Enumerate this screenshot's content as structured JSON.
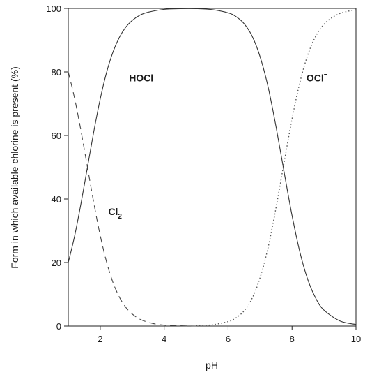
{
  "chart_data": {
    "type": "line",
    "xlabel": "pH",
    "ylabel": "Form in which available chlorine is present (%)",
    "xlim": [
      1,
      10
    ],
    "ylim": [
      0,
      100
    ],
    "xticks": [
      2,
      4,
      6,
      8,
      10
    ],
    "yticks": [
      0,
      20,
      40,
      60,
      80,
      100
    ],
    "grid": false,
    "legend": "none",
    "series": [
      {
        "name": "HOCl",
        "label": {
          "main": "HOCl",
          "sub": "",
          "sup": "",
          "x": 2.9,
          "y": 77
        },
        "style": "solid",
        "color": "#333333",
        "x": [
          1.0,
          1.2,
          1.4,
          1.6,
          1.8,
          2.0,
          2.2,
          2.4,
          2.6,
          2.8,
          3.0,
          3.25,
          3.5,
          4.0,
          4.5,
          5.0,
          5.5,
          6.0,
          6.25,
          6.5,
          6.75,
          7.0,
          7.25,
          7.5,
          7.75,
          8.0,
          8.25,
          8.5,
          8.75,
          9.0,
          9.5,
          10.0
        ],
        "values": [
          20.0,
          28.4,
          38.7,
          50.0,
          61.3,
          71.5,
          79.9,
          86.3,
          90.9,
          94.1,
          96.2,
          97.9,
          98.8,
          99.7,
          99.9,
          99.9,
          99.6,
          98.6,
          97.4,
          95.2,
          91.3,
          84.8,
          75.3,
          62.7,
          48.6,
          34.8,
          23.1,
          14.4,
          8.6,
          5.0,
          1.6,
          0.5
        ]
      },
      {
        "name": "Cl2",
        "label": {
          "main": "Cl",
          "sub": "2",
          "sup": "",
          "x": 2.25,
          "y": 35
        },
        "style": "dashed",
        "color": "#444444",
        "x": [
          1.0,
          1.2,
          1.4,
          1.6,
          1.8,
          2.0,
          2.2,
          2.4,
          2.6,
          2.8,
          3.0,
          3.25,
          3.5,
          3.75,
          4.0,
          4.5,
          5.0
        ],
        "values": [
          80.0,
          71.6,
          61.3,
          50.0,
          38.7,
          28.5,
          20.1,
          13.7,
          9.1,
          5.9,
          3.8,
          2.1,
          1.2,
          0.6,
          0.3,
          0.1,
          0.0
        ]
      },
      {
        "name": "OCl-",
        "label": {
          "main": "OCl",
          "sub": "",
          "sup": "−",
          "x": 8.45,
          "y": 77
        },
        "style": "dotted",
        "color": "#555555",
        "x": [
          5.0,
          5.5,
          6.0,
          6.25,
          6.5,
          6.75,
          7.0,
          7.25,
          7.5,
          7.75,
          8.0,
          8.25,
          8.5,
          8.75,
          9.0,
          9.25,
          9.5,
          9.75,
          10.0
        ],
        "values": [
          0.1,
          0.4,
          1.4,
          2.6,
          4.8,
          8.7,
          15.2,
          24.7,
          37.3,
          51.4,
          65.2,
          76.9,
          85.6,
          91.4,
          95.0,
          97.1,
          98.4,
          99.1,
          99.5
        ]
      }
    ]
  }
}
